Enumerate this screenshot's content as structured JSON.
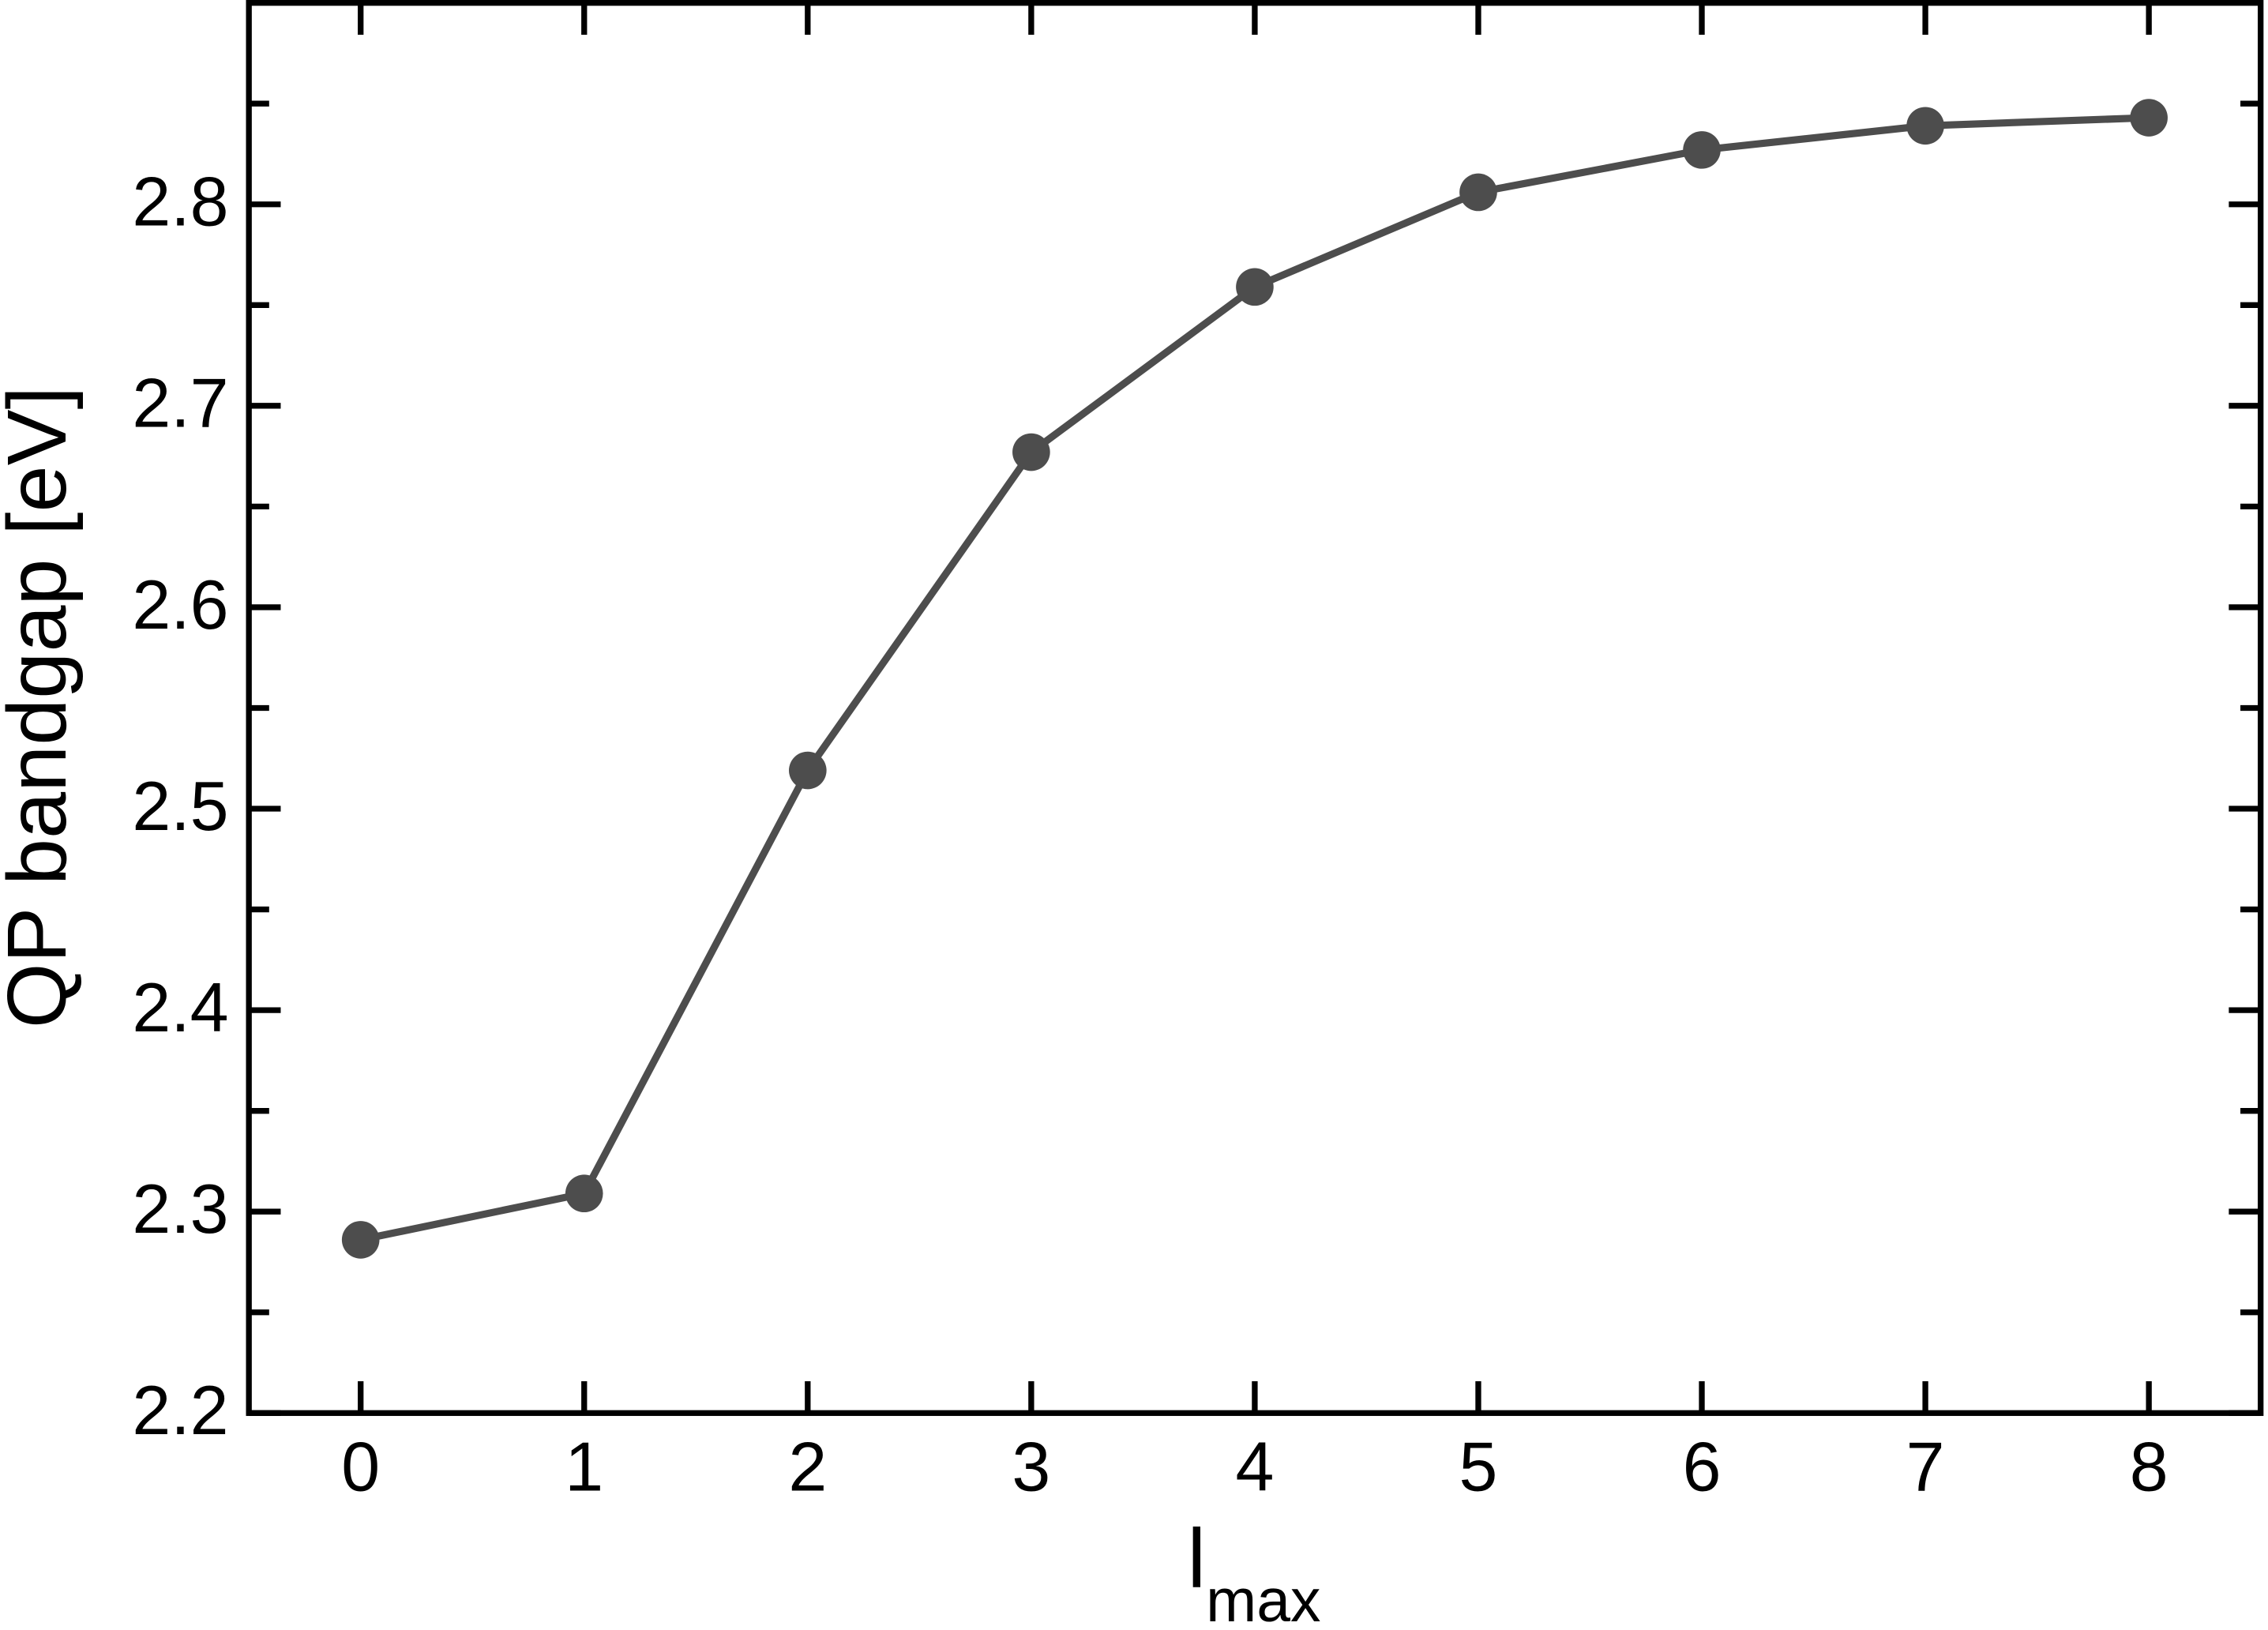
{
  "chart_data": {
    "type": "line",
    "ylabel": "QP bandgap [eV]",
    "xlabel": {
      "text": "l",
      "subscript": "max"
    },
    "x": [
      0,
      1,
      2,
      3,
      4,
      5,
      6,
      7,
      8
    ],
    "values": [
      2.286,
      2.309,
      2.519,
      2.677,
      2.759,
      2.806,
      2.827,
      2.839,
      2.843
    ],
    "color": "#4d4d4d",
    "xlim": [
      -0.5,
      8.5
    ],
    "xticks": [
      0,
      1,
      2,
      3,
      4,
      5,
      6,
      7,
      8
    ],
    "ylim": [
      2.2,
      2.9
    ],
    "yticks": [
      2.2,
      2.3,
      2.4,
      2.5,
      2.6,
      2.7,
      2.8
    ],
    "yminorticks": [
      2.25,
      2.35,
      2.45,
      2.55,
      2.65,
      2.75,
      2.85
    ],
    "markers": true
  }
}
